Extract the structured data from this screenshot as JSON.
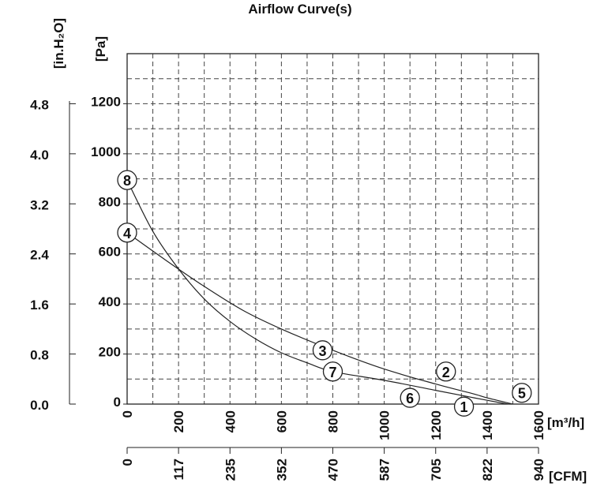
{
  "chart_data": {
    "type": "line",
    "title": "Airflow Curve(s)",
    "left_axis": {
      "unit_label": "[in.H₂O]",
      "ticks": [
        "4.8",
        "4.0",
        "3.2",
        "2.4",
        "1.6",
        "0.8",
        "0.0"
      ],
      "tick_values": [
        4.8,
        4.0,
        3.2,
        2.4,
        1.6,
        0.8,
        0.0
      ]
    },
    "y_axis": {
      "unit_label": "[Pa]",
      "ticks": [
        "1200",
        "1000",
        "800",
        "600",
        "400",
        "200",
        "0"
      ],
      "tick_values": [
        1200,
        1000,
        800,
        600,
        400,
        200,
        0
      ],
      "ylim": [
        0,
        1400
      ]
    },
    "x_axis": {
      "unit_label": "[m³/h]",
      "ticks": [
        "0",
        "200",
        "400",
        "600",
        "800",
        "1000",
        "1200",
        "1400",
        "1600"
      ],
      "tick_values": [
        0,
        200,
        400,
        600,
        800,
        1000,
        1200,
        1400,
        1600
      ],
      "xlim": [
        0,
        1600
      ]
    },
    "x2_axis": {
      "unit_label": "[CFM]",
      "ticks": [
        "0",
        "117",
        "235",
        "352",
        "470",
        "587",
        "705",
        "822",
        "940"
      ]
    },
    "grid": true,
    "series": [
      {
        "name": "4",
        "x": [
          0,
          150,
          300,
          450,
          600,
          800,
          1000,
          1200,
          1350,
          1400,
          1500
        ],
        "y": [
          685,
          575,
          470,
          375,
          300,
          215,
          140,
          80,
          40,
          25,
          0
        ]
      },
      {
        "name": "8",
        "x": [
          0,
          100,
          200,
          300,
          400,
          500,
          600,
          700,
          800,
          1000,
          1200,
          1350,
          1480
        ],
        "y": [
          895,
          690,
          540,
          420,
          330,
          260,
          205,
          165,
          130,
          95,
          55,
          25,
          0
        ]
      }
    ],
    "markers": [
      {
        "label": "8",
        "x": 0,
        "y": 895
      },
      {
        "label": "4",
        "x": 0,
        "y": 685
      },
      {
        "label": "3",
        "x": 760,
        "y": 215
      },
      {
        "label": "7",
        "x": 800,
        "y": 130
      },
      {
        "label": "2",
        "x": 1240,
        "y": 130
      },
      {
        "label": "6",
        "x": 1100,
        "y": 25
      },
      {
        "label": "1",
        "x": 1310,
        "y": -10
      },
      {
        "label": "5",
        "x": 1535,
        "y": 45
      }
    ]
  }
}
